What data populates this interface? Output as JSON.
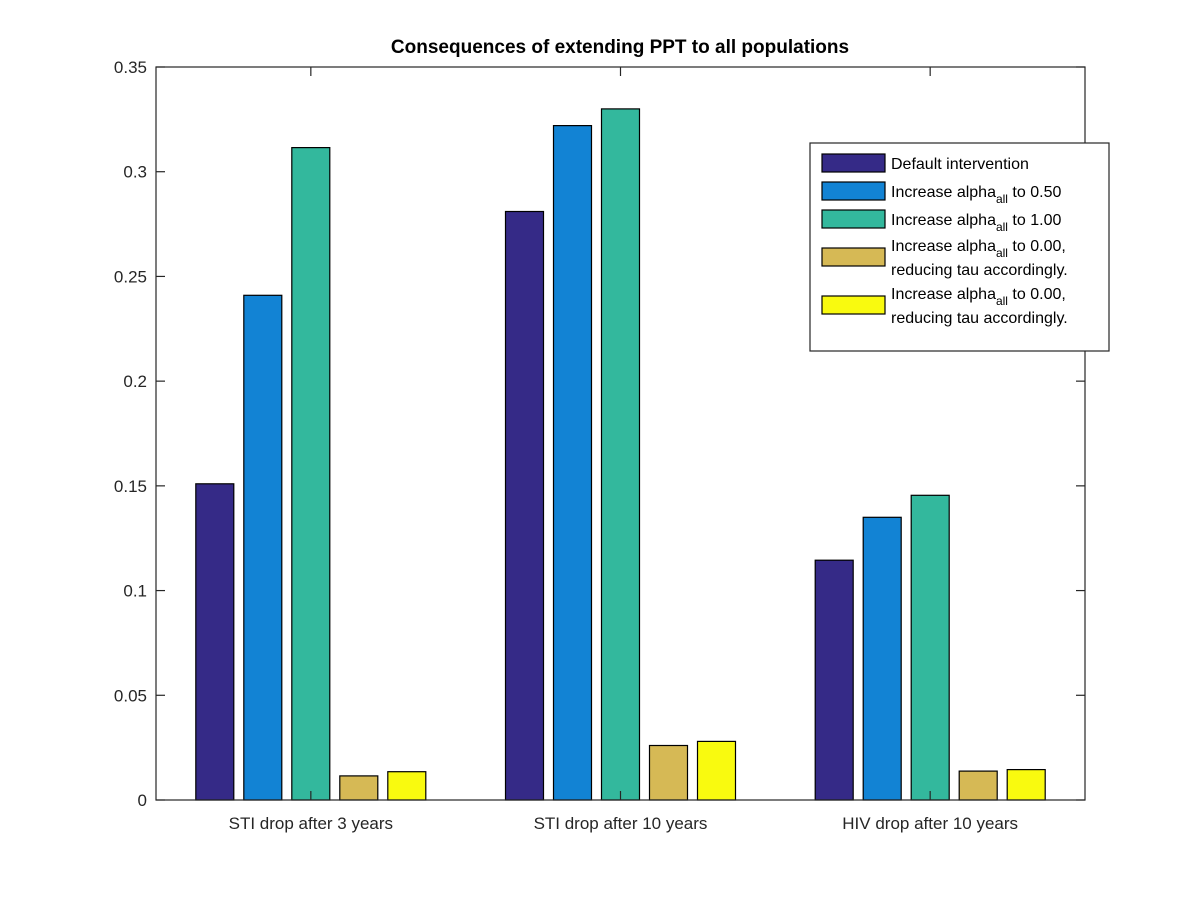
{
  "chart_data": {
    "type": "bar",
    "title": "Consequences of extending PPT to all populations",
    "xlabel": "",
    "ylabel": "",
    "categories": [
      "STI drop after 3 years",
      "STI drop after 10 years",
      "HIV drop after 10 years"
    ],
    "ylim": [
      0,
      0.35
    ],
    "yticks": [
      0,
      0.05,
      0.1,
      0.15,
      0.2,
      0.25,
      0.3,
      0.35
    ],
    "ytick_labels": [
      "0",
      "0.05",
      "0.1",
      "0.15",
      "0.2",
      "0.25",
      "0.3",
      "0.35"
    ],
    "grid": false,
    "legend_position": "top-right",
    "series": [
      {
        "name": "Default intervention",
        "legend_lines": [
          {
            "base": "Default intervention",
            "sub": "",
            "tail": ""
          }
        ],
        "color": "#352a87",
        "values": [
          0.151,
          0.281,
          0.1145
        ]
      },
      {
        "name": "Increase alpha_all to 0.50",
        "legend_lines": [
          {
            "base": "Increase alpha",
            "sub": "all",
            "tail": " to 0.50"
          }
        ],
        "color": "#1283d4",
        "values": [
          0.241,
          0.322,
          0.135
        ]
      },
      {
        "name": "Increase alpha_all to 1.00",
        "legend_lines": [
          {
            "base": "Increase alpha",
            "sub": "all",
            "tail": " to 1.00"
          }
        ],
        "color": "#33b89d",
        "values": [
          0.3115,
          0.33,
          0.1455
        ]
      },
      {
        "name": "Increase alpha_all to 0.00, reducing tau accordingly.",
        "legend_lines": [
          {
            "base": "Increase alpha",
            "sub": "all",
            "tail": " to 0.00,"
          },
          {
            "base": "reducing tau accordingly.",
            "sub": "",
            "tail": ""
          }
        ],
        "color": "#d6b955",
        "values": [
          0.0115,
          0.026,
          0.0138
        ]
      },
      {
        "name": "Increase alpha_all to 0.00, reducing tau accordingly.",
        "legend_lines": [
          {
            "base": "Increase alpha",
            "sub": "all",
            "tail": " to 0.00,"
          },
          {
            "base": "reducing tau accordingly.",
            "sub": "",
            "tail": ""
          }
        ],
        "color": "#f9fa0f",
        "values": [
          0.0135,
          0.028,
          0.0145
        ]
      }
    ]
  }
}
